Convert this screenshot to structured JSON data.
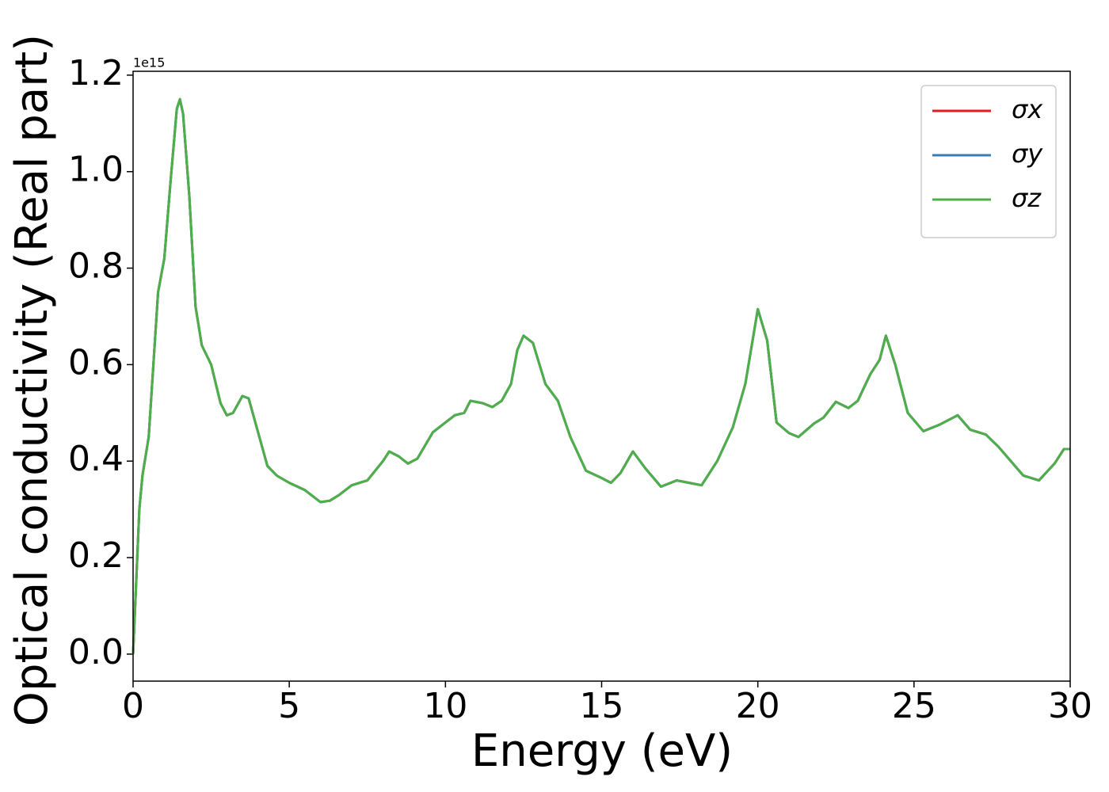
{
  "chart_data": {
    "type": "line",
    "xlabel": "Energy (eV)",
    "ylabel": "Optical conductivity (Real part)",
    "y_offset_text": "1e15",
    "x": [
      0,
      0.1,
      0.2,
      0.3,
      0.5,
      0.7,
      0.8,
      1.0,
      1.2,
      1.4,
      1.5,
      1.6,
      1.8,
      2.0,
      2.2,
      2.5,
      2.8,
      3.0,
      3.2,
      3.5,
      3.7,
      4.0,
      4.3,
      4.6,
      5.0,
      5.5,
      6.0,
      6.3,
      6.6,
      7.0,
      7.5,
      8.0,
      8.2,
      8.5,
      8.8,
      9.1,
      9.6,
      10.0,
      10.3,
      10.6,
      10.8,
      11.2,
      11.5,
      11.8,
      12.1,
      12.3,
      12.5,
      12.8,
      13.2,
      13.6,
      14.0,
      14.5,
      15.0,
      15.3,
      15.6,
      16.0,
      16.4,
      16.9,
      17.4,
      17.8,
      18.2,
      18.7,
      19.2,
      19.6,
      20.0,
      20.3,
      20.6,
      21.0,
      21.3,
      21.8,
      22.1,
      22.5,
      22.9,
      23.2,
      23.6,
      23.9,
      24.1,
      24.4,
      24.8,
      25.3,
      25.8,
      26.4,
      26.8,
      27.3,
      27.7,
      28.1,
      28.5,
      29.0,
      29.5,
      29.8,
      30.0
    ],
    "series": [
      {
        "name": "σx",
        "color": "#e41a1c",
        "values": [
          0.0,
          0.15,
          0.3,
          0.37,
          0.45,
          0.65,
          0.75,
          0.82,
          0.98,
          1.13,
          1.15,
          1.12,
          0.95,
          0.72,
          0.64,
          0.6,
          0.52,
          0.495,
          0.5,
          0.535,
          0.53,
          0.46,
          0.39,
          0.37,
          0.355,
          0.34,
          0.315,
          0.318,
          0.33,
          0.35,
          0.36,
          0.4,
          0.42,
          0.41,
          0.395,
          0.405,
          0.46,
          0.48,
          0.495,
          0.5,
          0.525,
          0.52,
          0.512,
          0.525,
          0.56,
          0.63,
          0.66,
          0.645,
          0.56,
          0.525,
          0.45,
          0.38,
          0.365,
          0.355,
          0.375,
          0.42,
          0.385,
          0.347,
          0.36,
          0.355,
          0.35,
          0.4,
          0.47,
          0.56,
          0.715,
          0.65,
          0.48,
          0.458,
          0.45,
          0.478,
          0.49,
          0.523,
          0.51,
          0.525,
          0.58,
          0.61,
          0.66,
          0.6,
          0.5,
          0.462,
          0.475,
          0.495,
          0.465,
          0.455,
          0.43,
          0.4,
          0.37,
          0.36,
          0.395,
          0.425,
          0.425
        ]
      },
      {
        "name": "σy",
        "color": "#377eb8",
        "values": [
          0.0,
          0.15,
          0.3,
          0.37,
          0.45,
          0.65,
          0.75,
          0.82,
          0.98,
          1.13,
          1.15,
          1.12,
          0.95,
          0.72,
          0.64,
          0.6,
          0.52,
          0.495,
          0.5,
          0.535,
          0.53,
          0.46,
          0.39,
          0.37,
          0.355,
          0.34,
          0.315,
          0.318,
          0.33,
          0.35,
          0.36,
          0.4,
          0.42,
          0.41,
          0.395,
          0.405,
          0.46,
          0.48,
          0.495,
          0.5,
          0.525,
          0.52,
          0.512,
          0.525,
          0.56,
          0.63,
          0.66,
          0.645,
          0.56,
          0.525,
          0.45,
          0.38,
          0.365,
          0.355,
          0.375,
          0.42,
          0.385,
          0.347,
          0.36,
          0.355,
          0.35,
          0.4,
          0.47,
          0.56,
          0.715,
          0.65,
          0.48,
          0.458,
          0.45,
          0.478,
          0.49,
          0.523,
          0.51,
          0.525,
          0.58,
          0.61,
          0.66,
          0.6,
          0.5,
          0.462,
          0.475,
          0.495,
          0.465,
          0.455,
          0.43,
          0.4,
          0.37,
          0.36,
          0.395,
          0.425,
          0.425
        ]
      },
      {
        "name": "σz",
        "color": "#4daf4a",
        "values": [
          0.0,
          0.15,
          0.3,
          0.37,
          0.45,
          0.65,
          0.75,
          0.82,
          0.98,
          1.13,
          1.15,
          1.12,
          0.95,
          0.72,
          0.64,
          0.6,
          0.52,
          0.495,
          0.5,
          0.535,
          0.53,
          0.46,
          0.39,
          0.37,
          0.355,
          0.34,
          0.315,
          0.318,
          0.33,
          0.35,
          0.36,
          0.4,
          0.42,
          0.41,
          0.395,
          0.405,
          0.46,
          0.48,
          0.495,
          0.5,
          0.525,
          0.52,
          0.512,
          0.525,
          0.56,
          0.63,
          0.66,
          0.645,
          0.56,
          0.525,
          0.45,
          0.38,
          0.365,
          0.355,
          0.375,
          0.42,
          0.385,
          0.347,
          0.36,
          0.355,
          0.35,
          0.4,
          0.47,
          0.56,
          0.715,
          0.65,
          0.48,
          0.458,
          0.45,
          0.478,
          0.49,
          0.523,
          0.51,
          0.525,
          0.58,
          0.61,
          0.66,
          0.6,
          0.5,
          0.462,
          0.475,
          0.495,
          0.465,
          0.455,
          0.43,
          0.4,
          0.37,
          0.36,
          0.395,
          0.425,
          0.425
        ]
      }
    ],
    "xlim": [
      0,
      30
    ],
    "xticks": [
      0,
      5,
      10,
      15,
      20,
      25,
      30
    ],
    "ylim": [
      -0.056,
      1.208
    ],
    "yticks": [
      {
        "value": 0,
        "label": "0.0"
      },
      0.2,
      0.4,
      0.6,
      0.8,
      {
        "value": 1,
        "label": "1.0"
      },
      1.2
    ],
    "grid": false,
    "legend": "upper right"
  }
}
